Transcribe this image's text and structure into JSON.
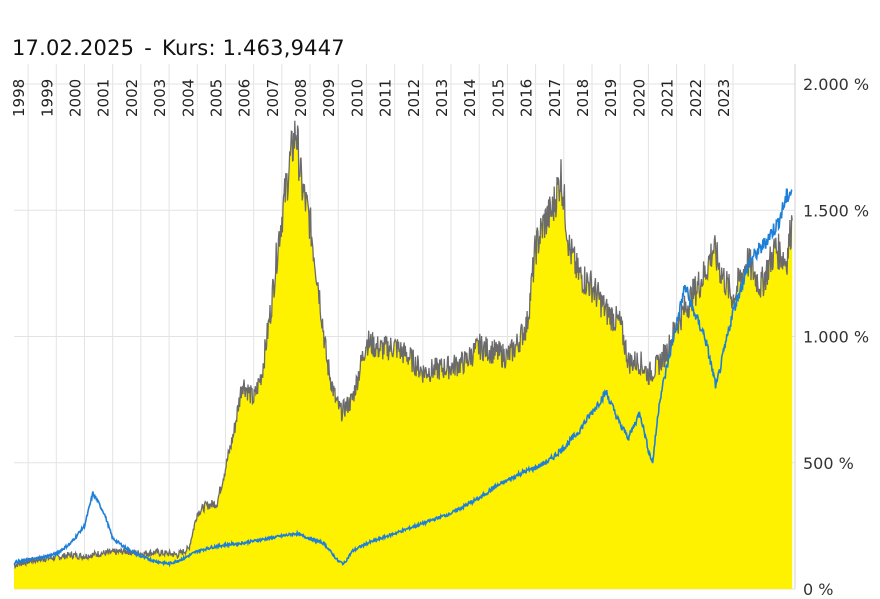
{
  "header": {
    "date": "17.02.2025",
    "separator": "-",
    "kurs_label": "Kurs:",
    "kurs_value": "1.463,9447"
  },
  "colors": {
    "area_fill": "#fff200",
    "main_line": "#6b6b6b",
    "benchmark_line": "#1e7fd8",
    "grid": "#e3e3e3"
  },
  "chart_data": {
    "type": "area",
    "title": "",
    "xlabel": "",
    "ylabel": "",
    "ylim": [
      0,
      2000
    ],
    "y_ticks": [
      0,
      500,
      1000,
      1500,
      2000
    ],
    "y_tick_labels": [
      "0 %",
      "500 %",
      "1.000 %",
      "1.500 %",
      "2.000 %"
    ],
    "x_tick_labels": [
      "1998",
      "1999",
      "2000",
      "2001",
      "2002",
      "2003",
      "2004",
      "2005",
      "2006",
      "2007",
      "2008",
      "2009",
      "2010",
      "2011",
      "2012",
      "2013",
      "2014",
      "2015",
      "2016",
      "2017",
      "2018",
      "2019",
      "2020",
      "2021",
      "2022",
      "2023"
    ],
    "xlim": [
      1997.5,
      2025.2
    ],
    "grid": true,
    "y_axis_position": "right",
    "series": [
      {
        "style": "area",
        "x": [
          1997.5,
          1998.0,
          1998.5,
          1999.0,
          1999.5,
          2000.0,
          2000.5,
          2001.0,
          2001.5,
          2002.0,
          2002.5,
          2003.0,
          2003.3,
          2003.7,
          2004.0,
          2004.3,
          2004.7,
          2005.0,
          2005.3,
          2005.6,
          2006.0,
          2006.3,
          2006.6,
          2006.9,
          2007.1,
          2007.3,
          2007.5,
          2007.7,
          2008.0,
          2008.3,
          2008.6,
          2008.9,
          2009.1,
          2009.5,
          2010.0,
          2010.5,
          2011.0,
          2011.5,
          2012.0,
          2012.5,
          2013.0,
          2013.5,
          2014.0,
          2014.5,
          2015.0,
          2015.3,
          2015.7,
          2016.0,
          2016.3,
          2016.6,
          2016.9,
          2017.2,
          2017.5,
          2018.0,
          2018.5,
          2019.0,
          2019.3,
          2019.7,
          2020.0,
          2020.3,
          2020.7,
          2021.0,
          2021.5,
          2022.0,
          2022.3,
          2022.6,
          2023.0,
          2023.5,
          2024.0,
          2024.5,
          2024.9,
          2025.1
        ],
        "values": [
          95,
          110,
          120,
          125,
          135,
          130,
          140,
          145,
          150,
          140,
          145,
          140,
          135,
          160,
          300,
          330,
          340,
          480,
          620,
          820,
          750,
          860,
          1100,
          1400,
          1550,
          1700,
          1820,
          1600,
          1450,
          1200,
          900,
          750,
          700,
          750,
          980,
          950,
          960,
          920,
          860,
          870,
          880,
          900,
          960,
          940,
          920,
          960,
          1050,
          1350,
          1450,
          1500,
          1640,
          1350,
          1250,
          1200,
          1100,
          1050,
          900,
          900,
          850,
          880,
          950,
          1050,
          1150,
          1250,
          1350,
          1250,
          1150,
          1300,
          1200,
          1350,
          1300,
          1460
        ]
      },
      {
        "style": "line",
        "x": [
          1997.5,
          1998.0,
          1998.5,
          1999.0,
          1999.5,
          2000.0,
          2000.3,
          2000.7,
          2001.0,
          2001.5,
          2002.0,
          2002.5,
          2003.0,
          2003.5,
          2004.0,
          2004.5,
          2005.0,
          2005.5,
          2006.0,
          2006.5,
          2007.0,
          2007.5,
          2008.0,
          2008.5,
          2009.0,
          2009.2,
          2009.5,
          2010.0,
          2010.5,
          2011.0,
          2011.5,
          2012.0,
          2012.5,
          2013.0,
          2013.5,
          2014.0,
          2014.5,
          2015.0,
          2015.5,
          2016.0,
          2016.5,
          2017.0,
          2017.5,
          2018.0,
          2018.5,
          2019.0,
          2019.3,
          2019.7,
          2020.0,
          2020.15,
          2020.4,
          2020.7,
          2021.0,
          2021.3,
          2021.6,
          2022.0,
          2022.2,
          2022.4,
          2022.7,
          2023.0,
          2023.3,
          2023.6,
          2024.0,
          2024.3,
          2024.6,
          2024.9,
          2025.1
        ],
        "values": [
          105,
          115,
          125,
          140,
          180,
          250,
          380,
          300,
          200,
          160,
          130,
          110,
          100,
          120,
          150,
          165,
          175,
          180,
          190,
          200,
          210,
          220,
          200,
          180,
          110,
          100,
          150,
          180,
          200,
          220,
          240,
          260,
          280,
          300,
          330,
          360,
          400,
          430,
          460,
          480,
          510,
          560,
          620,
          700,
          780,
          650,
          600,
          700,
          550,
          500,
          750,
          900,
          1050,
          1200,
          1100,
          1000,
          900,
          800,
          950,
          1100,
          1200,
          1300,
          1350,
          1400,
          1450,
          1550,
          1580
        ]
      }
    ]
  }
}
